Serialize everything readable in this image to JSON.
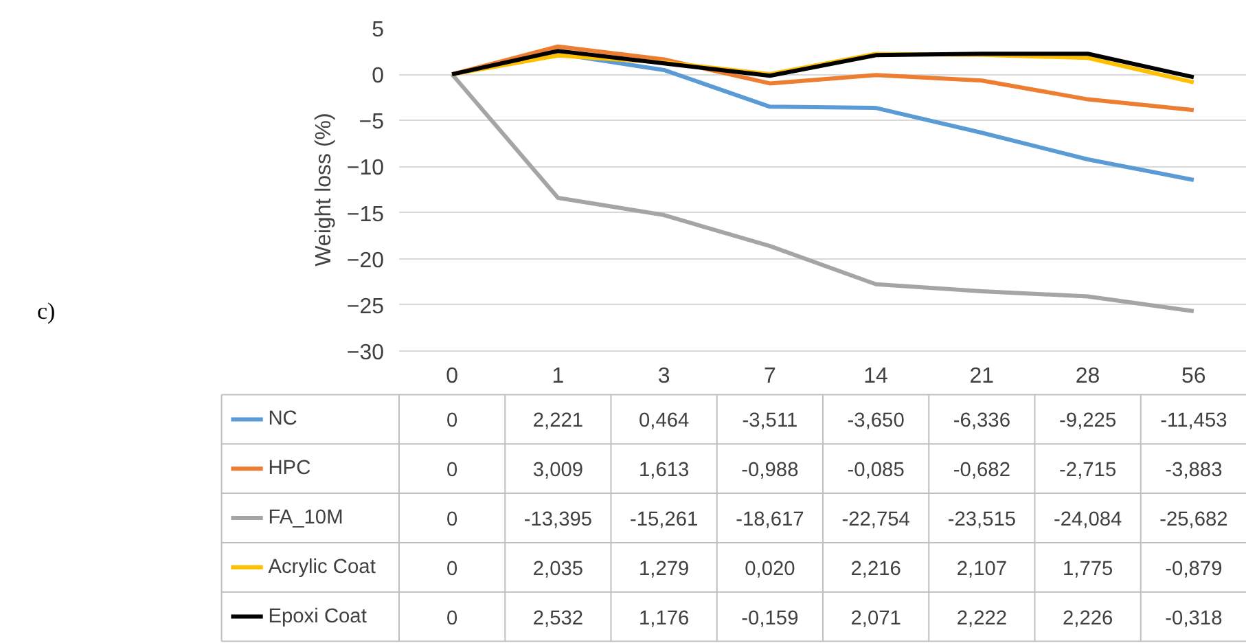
{
  "chart_data": {
    "type": "line",
    "ylabel": "Weight loss (%)",
    "annotations": [
      "c)"
    ],
    "categories": [
      "0",
      "1",
      "3",
      "7",
      "14",
      "21",
      "28",
      "56"
    ],
    "ylim": [
      -30,
      5
    ],
    "yticks": [
      -30,
      -25,
      -20,
      -15,
      -10,
      -5,
      0,
      5
    ],
    "grid": "y",
    "legend": "bottom",
    "series": [
      {
        "name": "NC",
        "color": "#5b9bd5",
        "values": [
          0,
          2.221,
          0.464,
          -3.511,
          -3.65,
          -6.336,
          -9.225,
          -11.453
        ],
        "value_labels": [
          "0",
          "2,221",
          "0,464",
          "-3,511",
          "-3,650",
          "-6,336",
          "-9,225",
          "-11,453"
        ]
      },
      {
        "name": "HPC",
        "color": "#ed7d31",
        "values": [
          0,
          3.009,
          1.613,
          -0.988,
          -0.085,
          -0.682,
          -2.715,
          -3.883
        ],
        "value_labels": [
          "0",
          "3,009",
          "1,613",
          "-0,988",
          "-0,085",
          "-0,682",
          "-2,715",
          "-3,883"
        ]
      },
      {
        "name": "FA_10M",
        "color": "#a5a5a5",
        "values": [
          0,
          -13.395,
          -15.261,
          -18.617,
          -22.754,
          -23.515,
          -24.084,
          -25.682
        ],
        "value_labels": [
          "0",
          "-13,395",
          "-15,261",
          "-18,617",
          "-22,754",
          "-23,515",
          "-24,084",
          "-25,682"
        ]
      },
      {
        "name": "Acrylic Coat",
        "color": "#ffc000",
        "values": [
          0,
          2.035,
          1.279,
          0.02,
          2.216,
          2.107,
          1.775,
          -0.879
        ],
        "value_labels": [
          "0",
          "2,035",
          "1,279",
          "0,020",
          "2,216",
          "2,107",
          "1,775",
          "-0,879"
        ]
      },
      {
        "name": "Epoxi Coat",
        "color": "#000000",
        "values": [
          0,
          2.532,
          1.176,
          -0.159,
          2.071,
          2.222,
          2.226,
          -0.318
        ],
        "value_labels": [
          "0",
          "2,532",
          "1,176",
          "-0,159",
          "2,071",
          "2,222",
          "2,226",
          "-0,318"
        ]
      }
    ]
  }
}
